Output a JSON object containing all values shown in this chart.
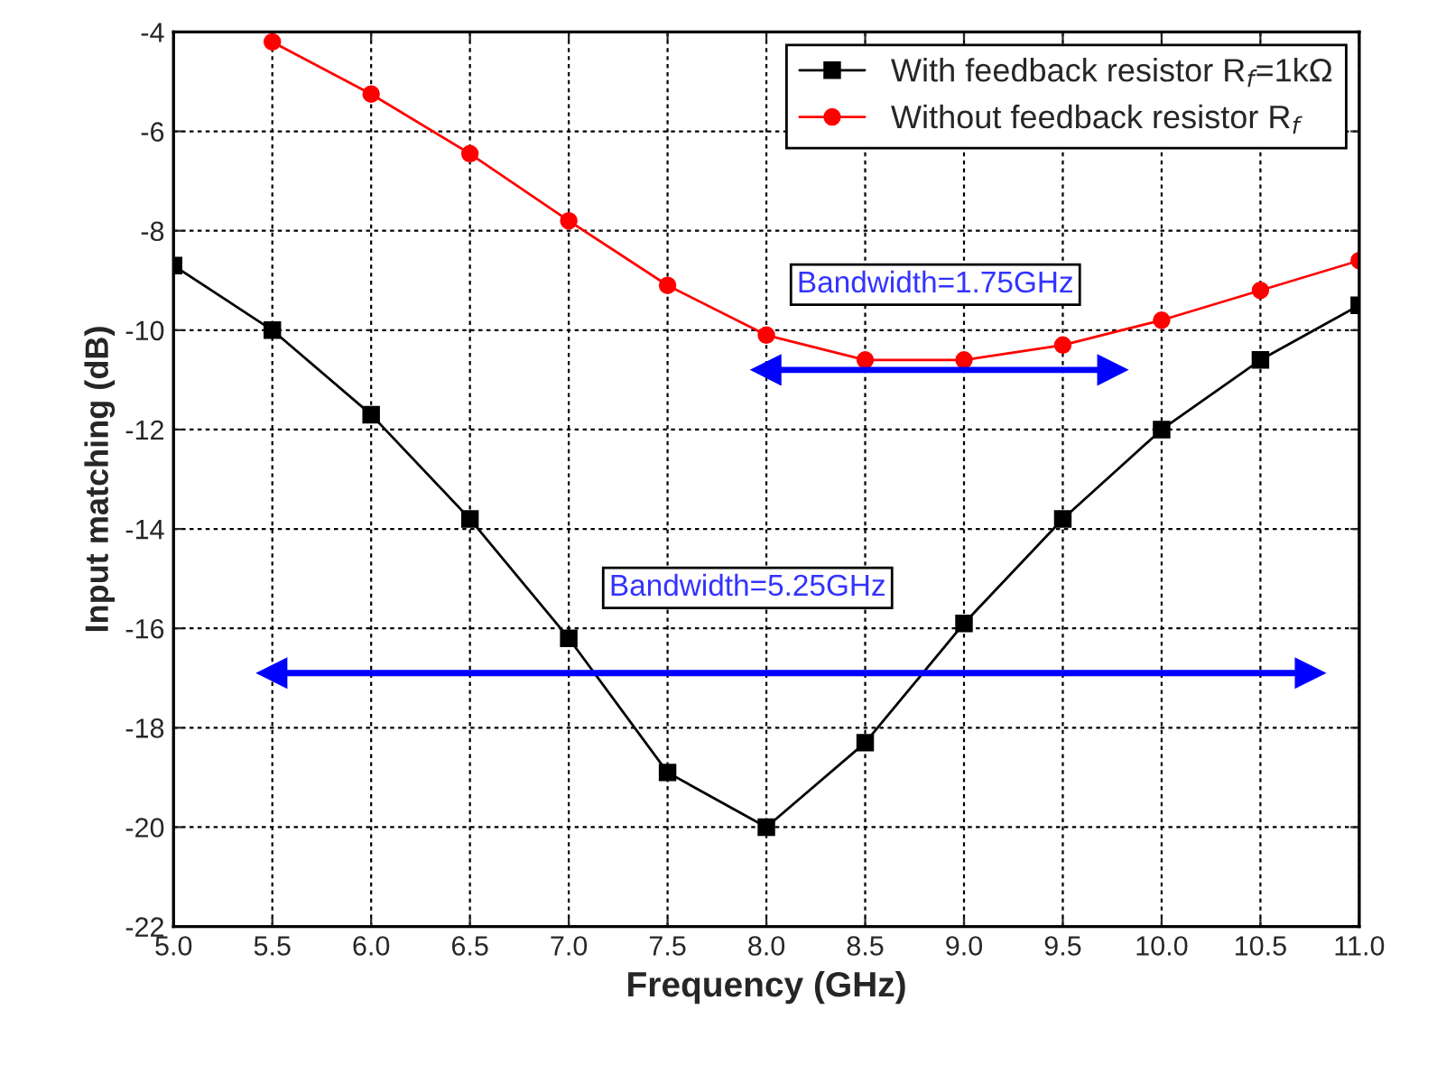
{
  "chart_data": {
    "type": "line",
    "xlabel": "Frequency (GHz)",
    "ylabel": "Input matching (dB)",
    "xlim": [
      5.0,
      11.0
    ],
    "xticks": [
      {
        "value": 5.0,
        "label": "5.0"
      },
      {
        "value": 5.5,
        "label": "5.5"
      },
      {
        "value": 6.0,
        "label": "6.0"
      },
      {
        "value": 6.5,
        "label": "6.5"
      },
      {
        "value": 7.0,
        "label": "7.0"
      },
      {
        "value": 7.5,
        "label": "7.5"
      },
      {
        "value": 8.0,
        "label": "8.0"
      },
      {
        "value": 8.5,
        "label": "8.5"
      },
      {
        "value": 9.0,
        "label": "9.0"
      },
      {
        "value": 9.5,
        "label": "9.5"
      },
      {
        "value": 10.0,
        "label": "10.0"
      },
      {
        "value": 10.5,
        "label": "10.5"
      },
      {
        "value": 11.0,
        "label": "11.0"
      }
    ],
    "ylim": [
      -22,
      -4
    ],
    "yticks": [
      -22,
      -20,
      -18,
      -16,
      -14,
      -12,
      -10,
      -8,
      -6,
      -4
    ],
    "grid": true,
    "legend": "top right",
    "series": [
      {
        "name": "With feedback resistor R$_{f}$=1kΩ",
        "color": "#000000",
        "marker": "square",
        "x": [
          5.0,
          5.5,
          6.0,
          6.5,
          7.0,
          7.5,
          8.0,
          8.5,
          9.0,
          9.5,
          10.0,
          10.5,
          11.0
        ],
        "values": [
          -8.7,
          -10.0,
          -11.7,
          -13.8,
          -16.2,
          -18.9,
          -20.0,
          -18.3,
          -15.9,
          -13.8,
          -12.0,
          -10.6,
          -9.5
        ]
      },
      {
        "name": "Without feedback resistor R$_{f}$",
        "color": "#ff0000",
        "marker": "circle",
        "x": [
          5.5,
          6.0,
          6.5,
          7.0,
          7.5,
          8.0,
          8.5,
          9.0,
          9.5,
          10.0,
          10.5,
          11.0
        ],
        "values": [
          -4.2,
          -5.25,
          -6.45,
          -7.8,
          -9.1,
          -10.1,
          -10.6,
          -10.6,
          -10.3,
          -9.8,
          -9.2,
          -8.6
        ]
      },
      {
        "color": "#0000ff",
        "marker": "triangle",
        "x": [
          8.0,
          9.75
        ],
        "values": [
          -10.8,
          -10.8
        ]
      },
      {
        "color": "#0000ff",
        "marker": "triangle",
        "x": [
          5.5,
          10.75
        ],
        "values": [
          -16.9,
          -16.9
        ]
      }
    ],
    "annotations": [
      "Bandwidth=1.75GHz",
      "Bandwidth=5.25GHz"
    ]
  }
}
